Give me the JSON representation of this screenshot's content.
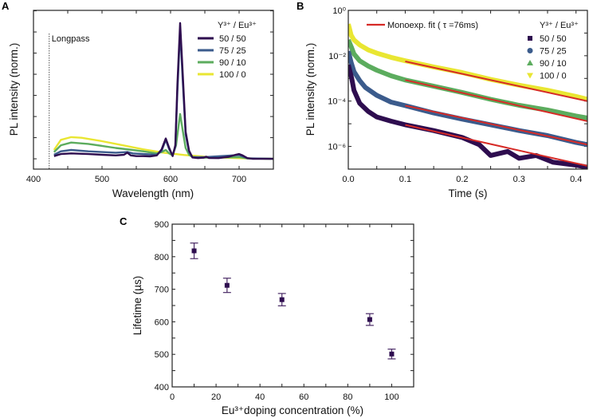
{
  "colors": {
    "purple": "#2e0d4f",
    "blue": "#3b5b8c",
    "green": "#5cac5e",
    "yellow": "#e9e632",
    "red": "#d62a26",
    "errorbar": "#4a2a66"
  },
  "chart_data": [
    {
      "panel": "A",
      "type": "line",
      "xlabel": "Wavelength (nm)",
      "ylabel": "PL intensity (norm.)",
      "xlim": [
        400,
        750
      ],
      "ylim": [
        -0.076,
        1.094
      ],
      "xticks": [
        400,
        500,
        600,
        700
      ],
      "yticklabels": false,
      "annotation": {
        "label": "Longpass",
        "x": 423
      },
      "legend": {
        "title": "Y³⁺ / Eu³⁺",
        "placement": "top-right"
      },
      "series": [
        {
          "name": "50  / 50",
          "color": "#2e0d4f",
          "x": [
            430,
            440,
            455,
            480,
            500,
            520,
            532,
            537,
            542,
            550,
            560,
            570,
            580,
            587,
            593,
            598,
            603,
            607,
            610,
            614,
            618,
            622,
            627,
            632,
            640,
            648,
            652,
            656,
            670,
            685,
            695,
            700,
            705,
            712,
            720,
            750
          ],
          "y": [
            0.02,
            0.035,
            0.04,
            0.035,
            0.03,
            0.025,
            0.03,
            0.045,
            0.025,
            0.02,
            0.02,
            0.018,
            0.025,
            0.07,
            0.15,
            0.08,
            0.02,
            0.1,
            0.55,
            1.0,
            0.6,
            0.2,
            0.06,
            0.01,
            0.005,
            0.008,
            0.016,
            0.006,
            0.005,
            0.015,
            0.03,
            0.035,
            0.025,
            0.005,
            0.0,
            0.0
          ]
        },
        {
          "name": "75  / 25",
          "color": "#3b5b8c",
          "x": [
            430,
            440,
            455,
            480,
            500,
            520,
            537,
            545,
            560,
            580,
            587,
            593,
            598,
            603,
            607,
            610,
            614,
            618,
            622,
            627,
            632,
            650,
            700,
            712,
            750
          ],
          "y": [
            0.03,
            0.055,
            0.065,
            0.055,
            0.05,
            0.045,
            0.05,
            0.04,
            0.035,
            0.03,
            0.06,
            0.14,
            0.07,
            0.025,
            0.09,
            0.5,
            0.95,
            0.55,
            0.18,
            0.05,
            0.012,
            0.012,
            0.028,
            0.004,
            0.0
          ]
        },
        {
          "name": "90  / 10",
          "color": "#5cac5e",
          "x": [
            430,
            440,
            455,
            480,
            500,
            520,
            540,
            560,
            580,
            587,
            593,
            598,
            603,
            608,
            614,
            618,
            622,
            627,
            632,
            650,
            700,
            712,
            750
          ],
          "y": [
            0.05,
            0.1,
            0.12,
            0.11,
            0.095,
            0.08,
            0.068,
            0.055,
            0.04,
            0.05,
            0.065,
            0.04,
            0.025,
            0.1,
            0.33,
            0.2,
            0.08,
            0.03,
            0.012,
            0.008,
            0.012,
            0.003,
            0.0
          ]
        },
        {
          "name": "100 /  0",
          "color": "#e9e632",
          "x": [
            430,
            440,
            455,
            470,
            500,
            530,
            560,
            590,
            620,
            650,
            680,
            710,
            750
          ],
          "y": [
            0.065,
            0.14,
            0.16,
            0.155,
            0.13,
            0.1,
            0.07,
            0.045,
            0.028,
            0.016,
            0.008,
            0.003,
            0.0
          ]
        }
      ]
    },
    {
      "panel": "B",
      "type": "scatter",
      "xlabel": "Time (s)",
      "ylabel": "PL intensity (norm.)",
      "xlim": [
        0,
        0.42
      ],
      "ylim": [
        1e-07,
        1
      ],
      "yscale": "log",
      "xticks": [
        0.0,
        0.1,
        0.2,
        0.3,
        0.4
      ],
      "xticklabels": [
        "0.0",
        "0.1",
        "0.2",
        "0.3",
        "0.4"
      ],
      "yticks": [
        1,
        0.01,
        0.0001,
        1e-06
      ],
      "yticklabels": [
        "10⁰",
        "10⁻²",
        "10⁻⁴",
        "10⁻⁶"
      ],
      "legend": {
        "title": "Y³⁺ / Eu³⁺",
        "placement": "top-right"
      },
      "fit": {
        "label": "Monoexp. fit ( τ =76ms)",
        "color": "#d62a26",
        "lines": [
          {
            "x": [
              0.1,
              0.42
            ],
            "y": [
              0.0056,
              0.0001
            ]
          },
          {
            "x": [
              0.1,
              0.42
            ],
            "y": [
              0.00085,
              1.3e-05
            ]
          },
          {
            "x": [
              0.1,
              0.42
            ],
            "y": [
              6.3e-05,
              1.2e-06
            ]
          },
          {
            "x": [
              0.1,
              0.42
            ],
            "y": [
              8.9e-06,
              1.4e-07
            ]
          }
        ]
      },
      "series": [
        {
          "name": "50  / 50",
          "marker": "square",
          "color": "#2e0d4f",
          "x": [
            0,
            0.003,
            0.006,
            0.01,
            0.02,
            0.035,
            0.05,
            0.075,
            0.1,
            0.15,
            0.2,
            0.23,
            0.25,
            0.28,
            0.3,
            0.33,
            0.36,
            0.4,
            0.42
          ],
          "y": [
            0.004,
            0.002,
            0.001,
            0.0003,
            8e-05,
            3.5e-05,
            2e-05,
            1.3e-05,
            9e-06,
            5e-06,
            2.5e-06,
            1.2e-06,
            4e-07,
            6e-07,
            3e-07,
            4e-07,
            2e-07,
            1.5e-07,
            1.2e-07
          ]
        },
        {
          "name": "75  / 25",
          "marker": "circle",
          "color": "#3b5b8c",
          "x": [
            0,
            0.005,
            0.01,
            0.02,
            0.03,
            0.05,
            0.075,
            0.1,
            0.15,
            0.2,
            0.25,
            0.3,
            0.35,
            0.4,
            0.42
          ],
          "y": [
            0.016,
            0.005,
            0.002,
            0.0008,
            0.0004,
            0.00018,
            9e-05,
            6.3e-05,
            3e-05,
            1.6e-05,
            9e-06,
            5e-06,
            3e-06,
            1.5e-06,
            1.2e-06
          ]
        },
        {
          "name": "90  / 10",
          "marker": "triangle-up",
          "color": "#5cac5e",
          "x": [
            0,
            0.005,
            0.01,
            0.02,
            0.035,
            0.05,
            0.075,
            0.1,
            0.15,
            0.2,
            0.25,
            0.3,
            0.35,
            0.4,
            0.42
          ],
          "y": [
            0.05,
            0.025,
            0.012,
            0.006,
            0.0035,
            0.0023,
            0.0013,
            0.00085,
            0.00045,
            0.00024,
            0.00012,
            6.5e-05,
            4e-05,
            2.2e-05,
            1.8e-05
          ]
        },
        {
          "name": "100 /  0",
          "marker": "triangle-down",
          "color": "#e9e632",
          "x": [
            0,
            0.005,
            0.01,
            0.02,
            0.035,
            0.05,
            0.075,
            0.1,
            0.15,
            0.2,
            0.25,
            0.3,
            0.35,
            0.4,
            0.42
          ],
          "y": [
            0.25,
            0.08,
            0.05,
            0.03,
            0.018,
            0.013,
            0.0085,
            0.006,
            0.0032,
            0.0018,
            0.0009,
            0.0005,
            0.0003,
            0.00016,
            0.00012
          ]
        }
      ]
    },
    {
      "panel": "C",
      "type": "scatter",
      "xlabel": "Eu³⁺doping concentration (%)",
      "ylabel": "Lifetime (µs)",
      "xlim": [
        0,
        110
      ],
      "ylim": [
        400,
        900
      ],
      "xticks": [
        0,
        20,
        40,
        60,
        80,
        100
      ],
      "yticks": [
        400,
        500,
        600,
        700,
        800,
        900
      ],
      "color": "#2e0d4f",
      "x": [
        10,
        25,
        50,
        90,
        100
      ],
      "y": [
        818,
        712,
        668,
        607,
        501
      ],
      "yerr": [
        24,
        22,
        19,
        18,
        15
      ]
    }
  ]
}
